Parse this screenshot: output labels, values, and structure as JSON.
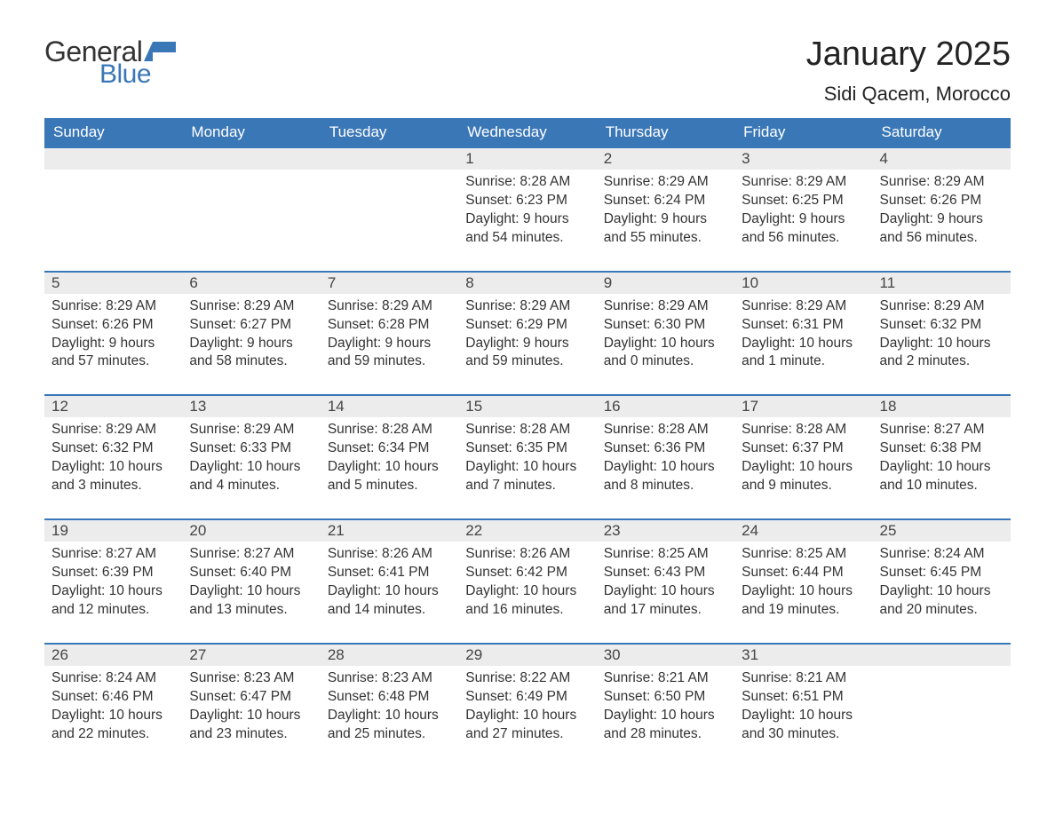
{
  "brand": {
    "general": "General",
    "blue": "Blue",
    "flag_color": "#3a77b7"
  },
  "header": {
    "month": "January 2025",
    "location": "Sidi Qacem, Morocco"
  },
  "style": {
    "header_bg": "#3a77b7",
    "header_fg": "#ffffff",
    "daynum_bg": "#ececec",
    "row_border": "#3a77b7",
    "body_bg": "#ffffff",
    "text_color": "#333333",
    "month_fontsize": 38,
    "location_fontsize": 22,
    "dow_fontsize": 17,
    "body_fontsize": 15.5
  },
  "days_of_week": [
    "Sunday",
    "Monday",
    "Tuesday",
    "Wednesday",
    "Thursday",
    "Friday",
    "Saturday"
  ],
  "weeks": [
    [
      null,
      null,
      null,
      {
        "n": "1",
        "sunrise": "8:28 AM",
        "sunset": "6:23 PM",
        "daylight": "9 hours and 54 minutes."
      },
      {
        "n": "2",
        "sunrise": "8:29 AM",
        "sunset": "6:24 PM",
        "daylight": "9 hours and 55 minutes."
      },
      {
        "n": "3",
        "sunrise": "8:29 AM",
        "sunset": "6:25 PM",
        "daylight": "9 hours and 56 minutes."
      },
      {
        "n": "4",
        "sunrise": "8:29 AM",
        "sunset": "6:26 PM",
        "daylight": "9 hours and 56 minutes."
      }
    ],
    [
      {
        "n": "5",
        "sunrise": "8:29 AM",
        "sunset": "6:26 PM",
        "daylight": "9 hours and 57 minutes."
      },
      {
        "n": "6",
        "sunrise": "8:29 AM",
        "sunset": "6:27 PM",
        "daylight": "9 hours and 58 minutes."
      },
      {
        "n": "7",
        "sunrise": "8:29 AM",
        "sunset": "6:28 PM",
        "daylight": "9 hours and 59 minutes."
      },
      {
        "n": "8",
        "sunrise": "8:29 AM",
        "sunset": "6:29 PM",
        "daylight": "9 hours and 59 minutes."
      },
      {
        "n": "9",
        "sunrise": "8:29 AM",
        "sunset": "6:30 PM",
        "daylight": "10 hours and 0 minutes."
      },
      {
        "n": "10",
        "sunrise": "8:29 AM",
        "sunset": "6:31 PM",
        "daylight": "10 hours and 1 minute."
      },
      {
        "n": "11",
        "sunrise": "8:29 AM",
        "sunset": "6:32 PM",
        "daylight": "10 hours and 2 minutes."
      }
    ],
    [
      {
        "n": "12",
        "sunrise": "8:29 AM",
        "sunset": "6:32 PM",
        "daylight": "10 hours and 3 minutes."
      },
      {
        "n": "13",
        "sunrise": "8:29 AM",
        "sunset": "6:33 PM",
        "daylight": "10 hours and 4 minutes."
      },
      {
        "n": "14",
        "sunrise": "8:28 AM",
        "sunset": "6:34 PM",
        "daylight": "10 hours and 5 minutes."
      },
      {
        "n": "15",
        "sunrise": "8:28 AM",
        "sunset": "6:35 PM",
        "daylight": "10 hours and 7 minutes."
      },
      {
        "n": "16",
        "sunrise": "8:28 AM",
        "sunset": "6:36 PM",
        "daylight": "10 hours and 8 minutes."
      },
      {
        "n": "17",
        "sunrise": "8:28 AM",
        "sunset": "6:37 PM",
        "daylight": "10 hours and 9 minutes."
      },
      {
        "n": "18",
        "sunrise": "8:27 AM",
        "sunset": "6:38 PM",
        "daylight": "10 hours and 10 minutes."
      }
    ],
    [
      {
        "n": "19",
        "sunrise": "8:27 AM",
        "sunset": "6:39 PM",
        "daylight": "10 hours and 12 minutes."
      },
      {
        "n": "20",
        "sunrise": "8:27 AM",
        "sunset": "6:40 PM",
        "daylight": "10 hours and 13 minutes."
      },
      {
        "n": "21",
        "sunrise": "8:26 AM",
        "sunset": "6:41 PM",
        "daylight": "10 hours and 14 minutes."
      },
      {
        "n": "22",
        "sunrise": "8:26 AM",
        "sunset": "6:42 PM",
        "daylight": "10 hours and 16 minutes."
      },
      {
        "n": "23",
        "sunrise": "8:25 AM",
        "sunset": "6:43 PM",
        "daylight": "10 hours and 17 minutes."
      },
      {
        "n": "24",
        "sunrise": "8:25 AM",
        "sunset": "6:44 PM",
        "daylight": "10 hours and 19 minutes."
      },
      {
        "n": "25",
        "sunrise": "8:24 AM",
        "sunset": "6:45 PM",
        "daylight": "10 hours and 20 minutes."
      }
    ],
    [
      {
        "n": "26",
        "sunrise": "8:24 AM",
        "sunset": "6:46 PM",
        "daylight": "10 hours and 22 minutes."
      },
      {
        "n": "27",
        "sunrise": "8:23 AM",
        "sunset": "6:47 PM",
        "daylight": "10 hours and 23 minutes."
      },
      {
        "n": "28",
        "sunrise": "8:23 AM",
        "sunset": "6:48 PM",
        "daylight": "10 hours and 25 minutes."
      },
      {
        "n": "29",
        "sunrise": "8:22 AM",
        "sunset": "6:49 PM",
        "daylight": "10 hours and 27 minutes."
      },
      {
        "n": "30",
        "sunrise": "8:21 AM",
        "sunset": "6:50 PM",
        "daylight": "10 hours and 28 minutes."
      },
      {
        "n": "31",
        "sunrise": "8:21 AM",
        "sunset": "6:51 PM",
        "daylight": "10 hours and 30 minutes."
      },
      null
    ]
  ],
  "labels": {
    "sunrise": "Sunrise:",
    "sunset": "Sunset:",
    "daylight": "Daylight:"
  }
}
